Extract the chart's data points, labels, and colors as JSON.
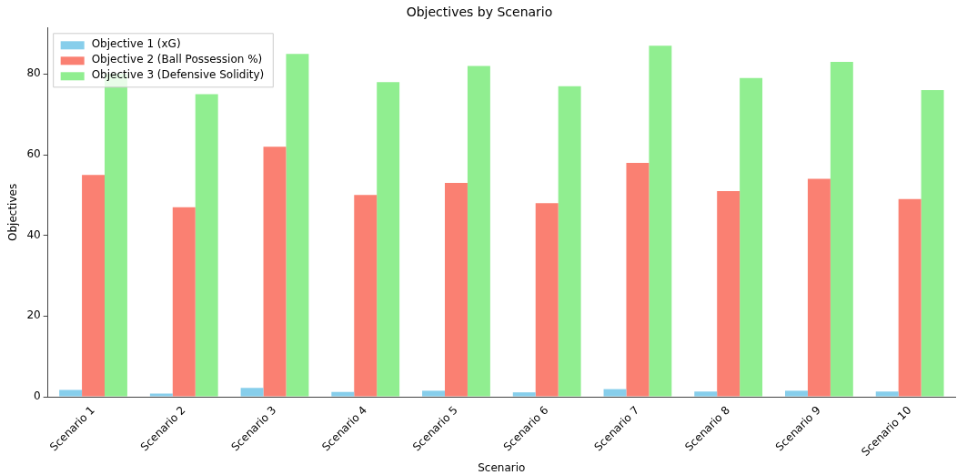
{
  "chart_data": {
    "type": "bar",
    "title": "Objectives by Scenario",
    "xlabel": "Scenario",
    "ylabel": "Objectives",
    "categories": [
      "Scenario 1",
      "Scenario 2",
      "Scenario 3",
      "Scenario 4",
      "Scenario 5",
      "Scenario 6",
      "Scenario 7",
      "Scenario 8",
      "Scenario 9",
      "Scenario 10"
    ],
    "series": [
      {
        "name": "Objective 1 (xG)",
        "color": "#87ceeb",
        "values": [
          1.7,
          0.8,
          2.2,
          1.2,
          1.5,
          1.1,
          1.9,
          1.3,
          1.5,
          1.3
        ]
      },
      {
        "name": "Objective 2 (Ball Possession %)",
        "color": "#fa8072",
        "values": [
          55,
          47,
          62,
          50,
          53,
          48,
          58,
          51,
          54,
          49
        ]
      },
      {
        "name": "Objective 3 (Defensive Solidity)",
        "color": "#90ee90",
        "values": [
          80,
          75,
          85,
          78,
          82,
          77,
          87,
          79,
          83,
          76
        ]
      }
    ],
    "ylim": [
      0,
      91.4
    ],
    "yticks": [
      0,
      20,
      40,
      60,
      80
    ],
    "grid": false,
    "legend": "top left"
  }
}
